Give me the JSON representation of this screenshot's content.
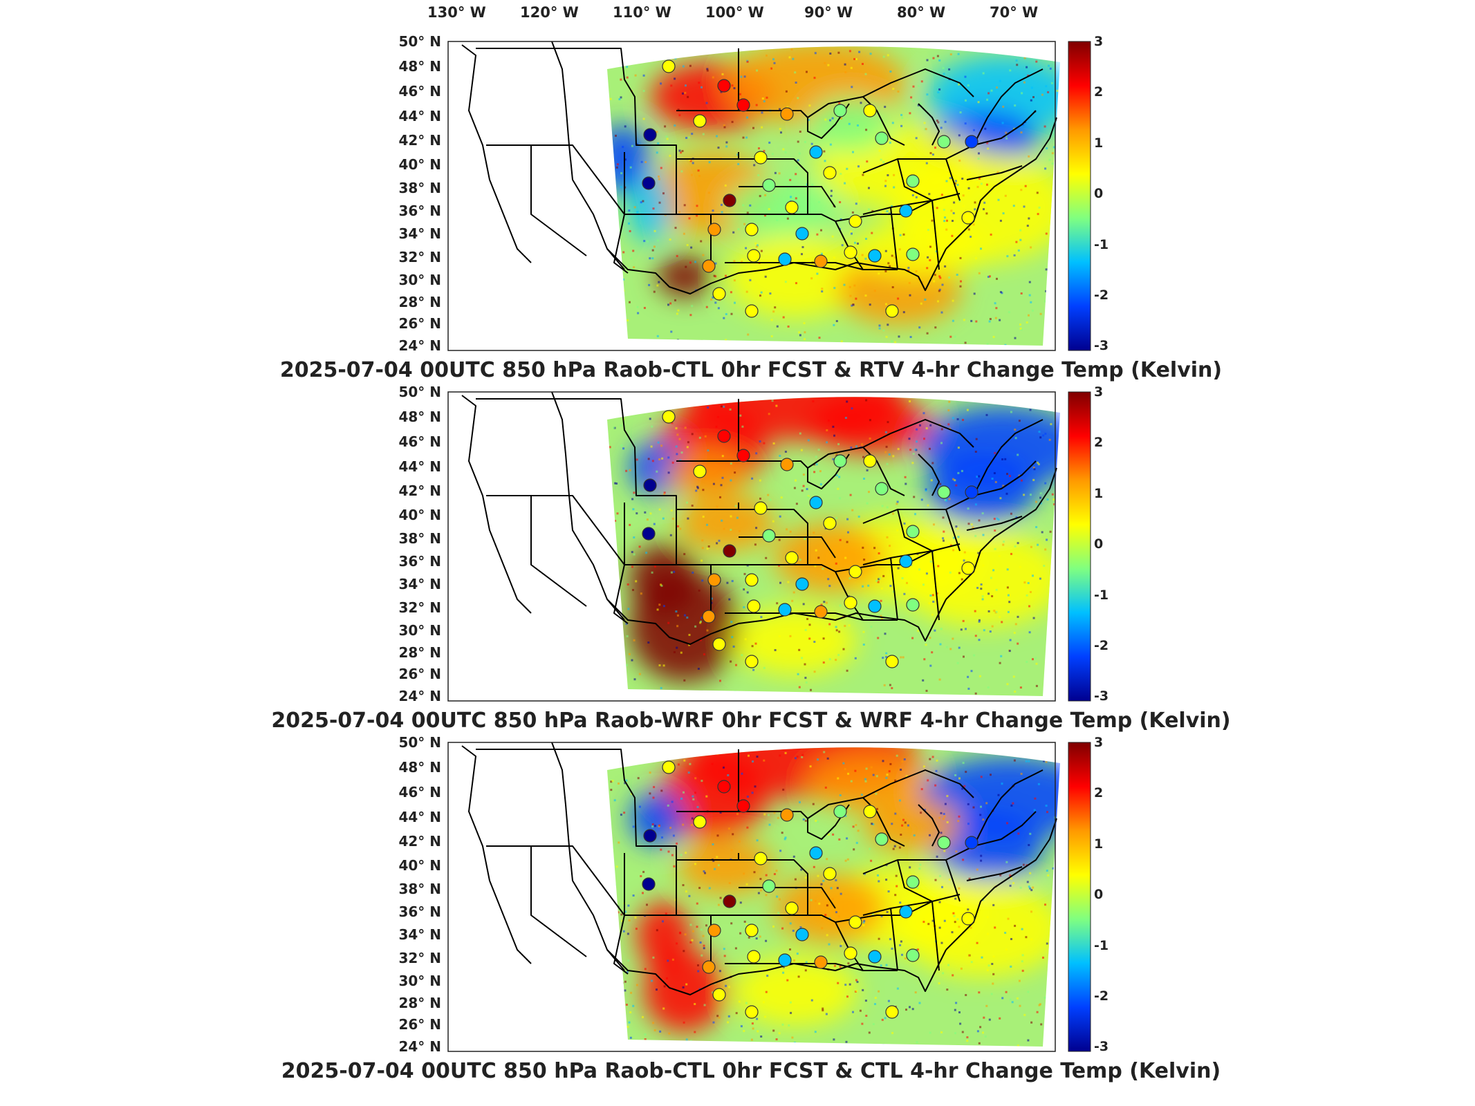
{
  "top_axis": {
    "labels": [
      "130° W",
      "120° W",
      "110° W",
      "100° W",
      "90° W",
      "80° W",
      "70° W"
    ]
  },
  "left_axis": {
    "labels": [
      "50° N",
      "48° N",
      "46° N",
      "44° N",
      "42° N",
      "40° N",
      "38° N",
      "36° N",
      "34° N",
      "32° N",
      "30° N",
      "28° N",
      "26° N",
      "24° N"
    ]
  },
  "colorbar": {
    "ticks": [
      "3",
      "2",
      "1",
      "0",
      "-1",
      "-2",
      "-3"
    ],
    "colors": [
      "#7f0000",
      "#ff0000",
      "#ff9900",
      "#ffff00",
      "#80ff80",
      "#00c0ff",
      "#0040ff",
      "#00008f"
    ]
  },
  "panels": [
    {
      "title": "2025-07-04 00UTC 850 hPa Raob-CTL 0hr FCST & RTV 4-hr Change Temp (Kelvin)"
    },
    {
      "title": "2025-07-04 00UTC 850 hPa Raob-WRF 0hr FCST & WRF 4-hr Change Temp (Kelvin)"
    },
    {
      "title": "2025-07-04 00UTC 850 hPa Raob-CTL 0hr FCST & CTL 4-hr Change Temp (Kelvin)"
    }
  ]
}
